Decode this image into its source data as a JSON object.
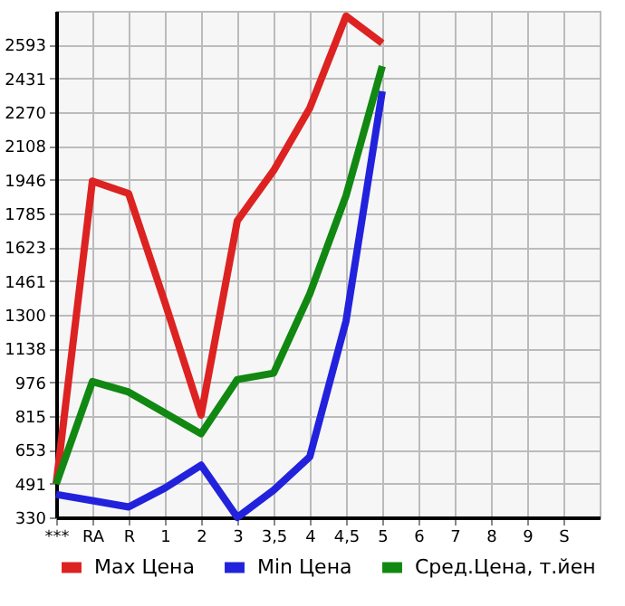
{
  "chart_data": {
    "type": "line",
    "categories": [
      "***",
      "RA",
      "R",
      "1",
      "2",
      "3",
      "3,5",
      "4",
      "4,5",
      "5",
      "6",
      "7",
      "8",
      "9",
      "S"
    ],
    "series": [
      {
        "name": "Max Цена",
        "color": "#dd2222",
        "values": [
          490,
          1940,
          1880,
          1360,
          820,
          1750,
          1990,
          2290,
          2730,
          2600,
          null,
          null,
          null,
          null,
          null
        ]
      },
      {
        "name": "Min Цена",
        "color": "#2222dd",
        "values": [
          440,
          410,
          380,
          470,
          580,
          330,
          460,
          620,
          1270,
          2370,
          null,
          null,
          null,
          null,
          null
        ]
      },
      {
        "name": "Сред.Цена, т.йен",
        "color": "#118811",
        "values": [
          490,
          980,
          930,
          830,
          730,
          990,
          1020,
          1400,
          1870,
          2490,
          null,
          null,
          null,
          null,
          null
        ]
      }
    ],
    "ylim": [
      330,
      2755
    ],
    "yticks": [
      330,
      491,
      653,
      815,
      976,
      1138,
      1300,
      1461,
      1623,
      1785,
      1946,
      2108,
      2270,
      2431,
      2593
    ],
    "grid": true,
    "legend": "bottom",
    "marker": "none",
    "line_style": "solid"
  }
}
